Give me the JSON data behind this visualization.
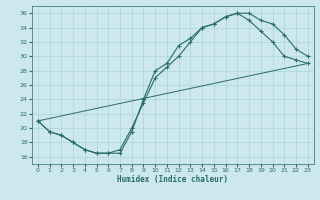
{
  "xlabel": "Humidex (Indice chaleur)",
  "xlim": [
    -0.5,
    23.5
  ],
  "ylim": [
    15,
    37
  ],
  "yticks": [
    16,
    18,
    20,
    22,
    24,
    26,
    28,
    30,
    32,
    34,
    36
  ],
  "xticks": [
    0,
    1,
    2,
    3,
    4,
    5,
    6,
    7,
    8,
    9,
    10,
    11,
    12,
    13,
    14,
    15,
    16,
    17,
    18,
    19,
    20,
    21,
    22,
    23
  ],
  "bg_color": "#cce8ec",
  "grid_color": "#aad4d8",
  "line_color": "#2a6b6b",
  "line1_x": [
    0,
    1,
    2,
    3,
    4,
    5,
    6,
    7,
    8,
    9,
    10,
    11,
    12,
    13,
    14,
    15,
    16,
    17,
    18,
    19,
    20,
    21,
    22,
    23
  ],
  "line1_y": [
    21,
    19.5,
    19,
    18,
    17,
    16.5,
    16.5,
    16.5,
    19.5,
    24,
    28,
    29,
    31.5,
    32.5,
    34,
    34.5,
    35.5,
    36,
    36,
    35,
    34.5,
    33,
    31,
    30
  ],
  "line2_x": [
    0,
    1,
    2,
    3,
    4,
    5,
    6,
    7,
    8,
    9,
    10,
    11,
    12,
    13,
    14,
    15,
    16,
    17,
    18,
    19,
    20,
    21,
    22,
    23
  ],
  "line2_y": [
    21,
    19.5,
    19,
    18,
    17,
    16.5,
    16.5,
    17,
    20,
    23.5,
    27,
    28.5,
    30,
    32,
    34,
    34.5,
    35.5,
    36,
    35,
    33.5,
    32,
    30,
    29.5,
    29
  ],
  "line3_x": [
    0,
    23
  ],
  "line3_y": [
    21,
    29
  ]
}
